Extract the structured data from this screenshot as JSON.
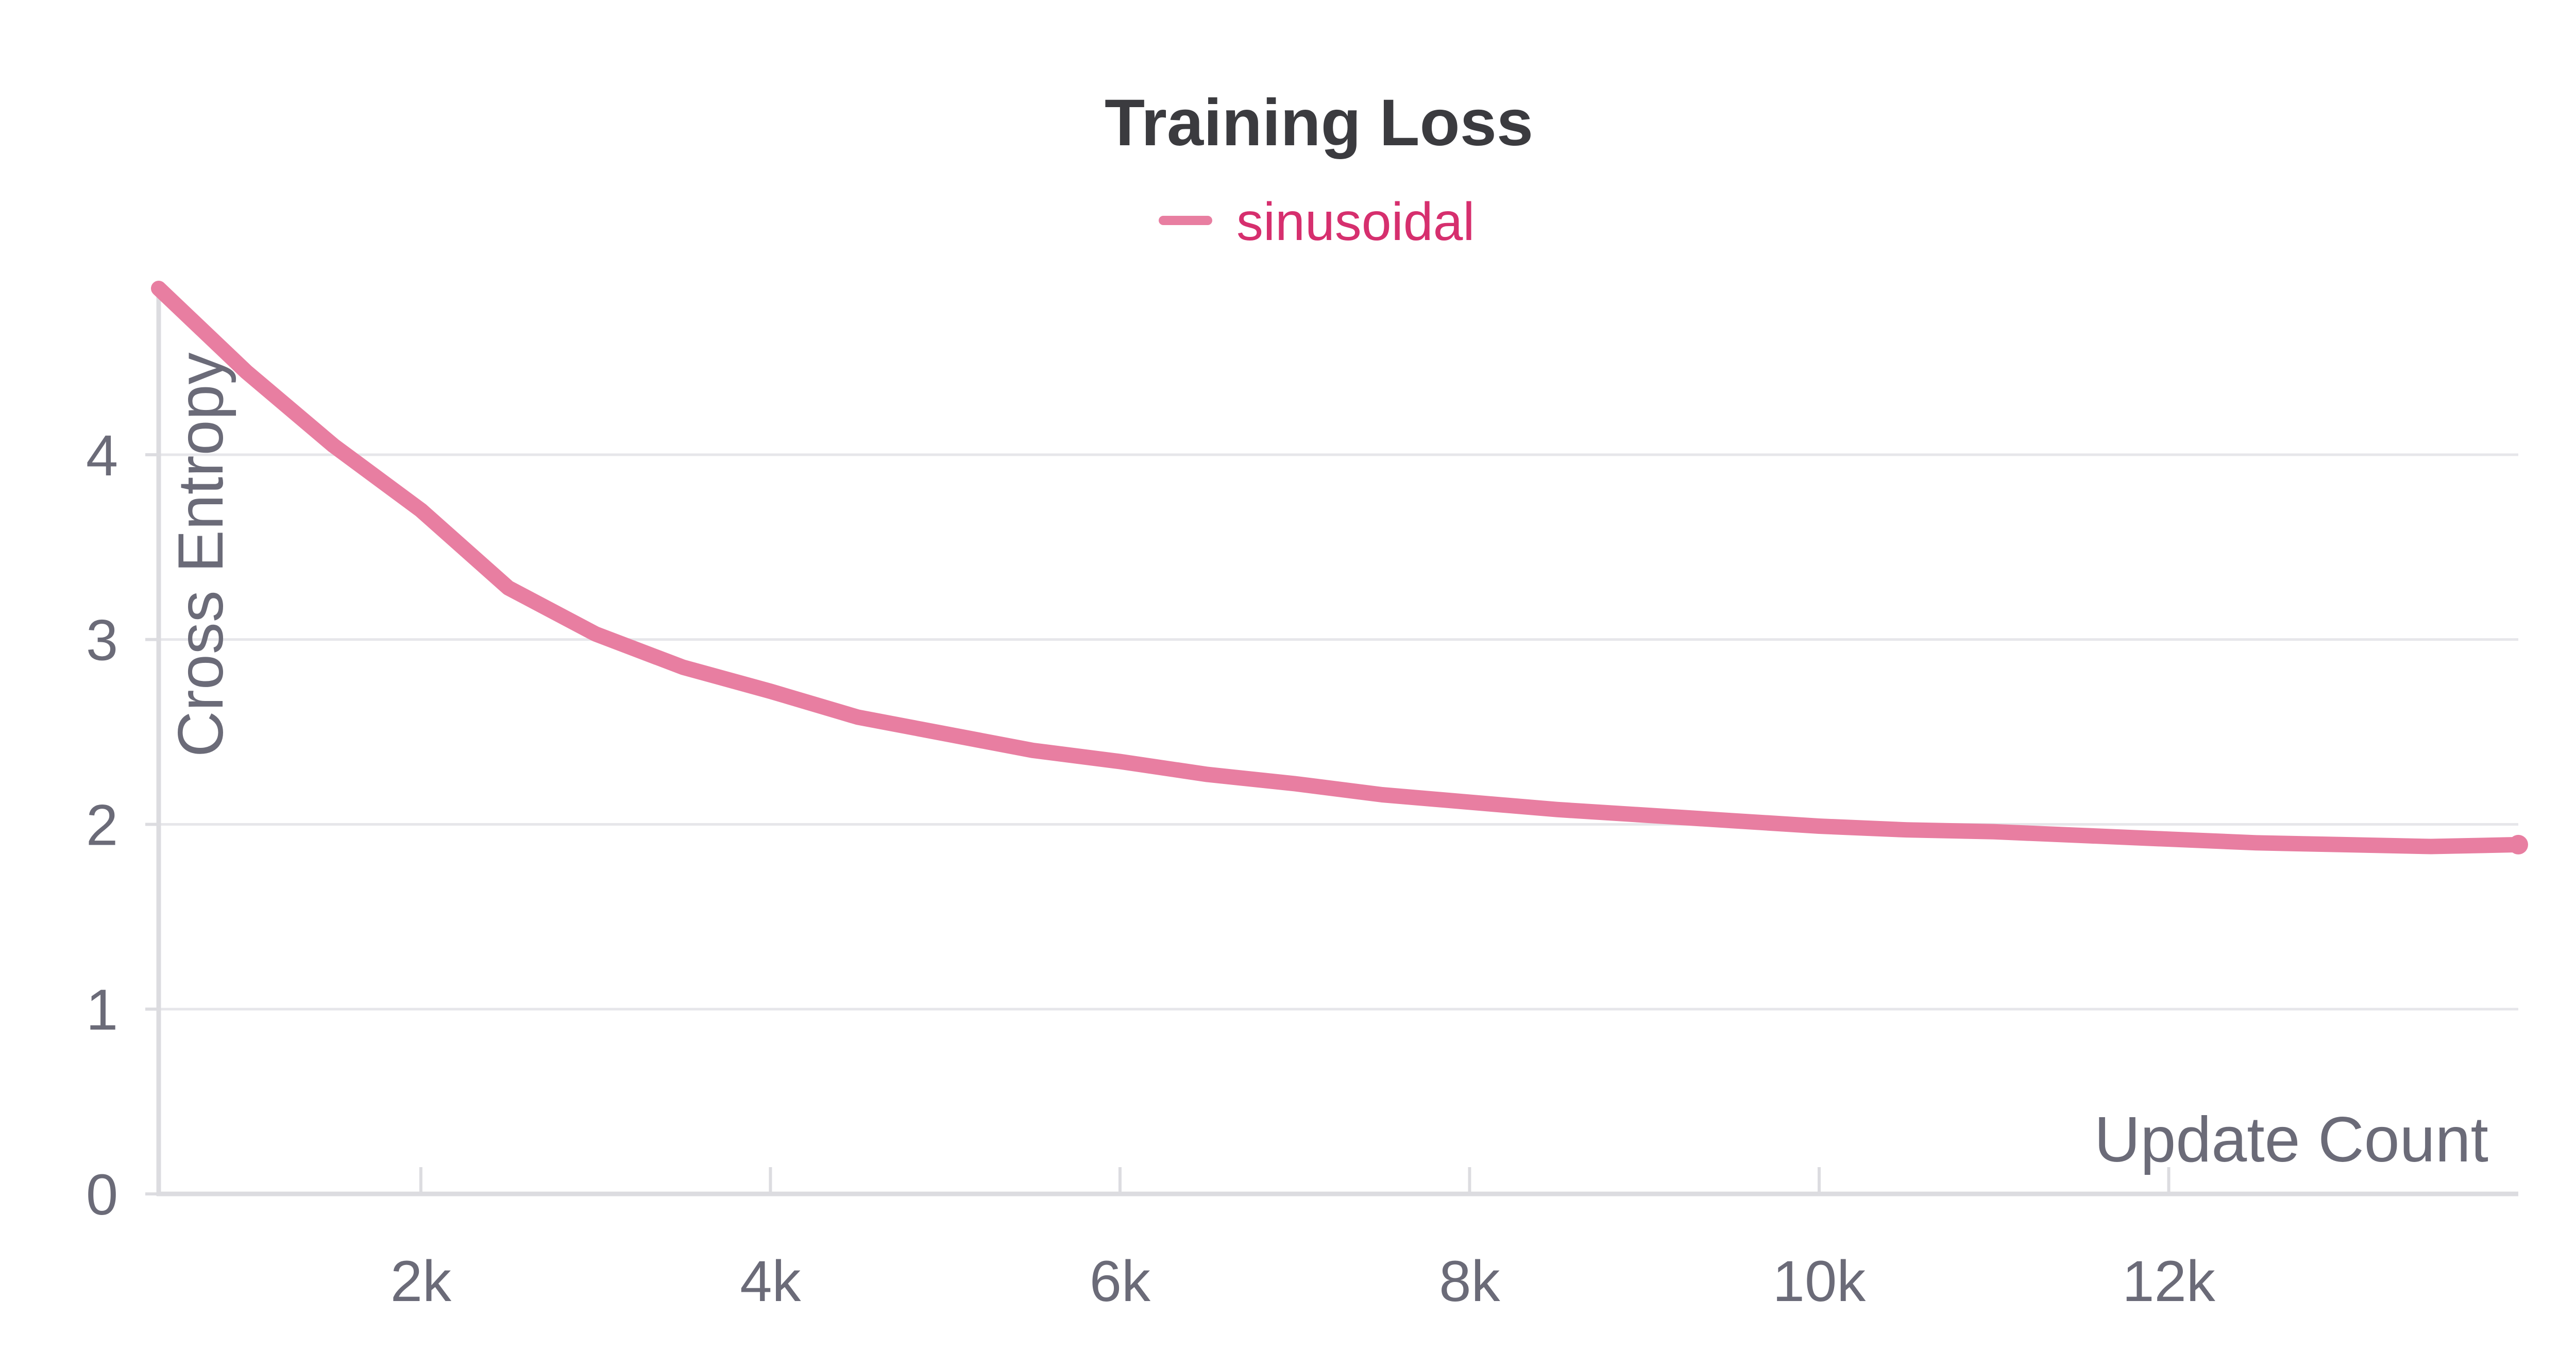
{
  "chart_data": {
    "type": "line",
    "title": "Training Loss",
    "xlabel": "Update Count",
    "ylabel": "Cross Entropy",
    "xlim": [
      500,
      14000
    ],
    "ylim": [
      0,
      4.9
    ],
    "x_ticks": [
      2000,
      4000,
      6000,
      8000,
      10000,
      12000
    ],
    "x_tick_labels": [
      "2k",
      "4k",
      "6k",
      "8k",
      "10k",
      "12k"
    ],
    "y_ticks": [
      0,
      1,
      2,
      3,
      4
    ],
    "y_tick_labels": [
      "0",
      "1",
      "2",
      "3",
      "4"
    ],
    "grid": true,
    "legend_position": "top-center",
    "series": [
      {
        "name": "sinusoidal",
        "color": "#e87ea1",
        "legend_text_color": "#d62f6e",
        "x": [
          500,
          1000,
          1500,
          2000,
          2500,
          3000,
          3500,
          4000,
          4500,
          5000,
          5500,
          6000,
          6500,
          7000,
          7500,
          8000,
          8500,
          9000,
          9500,
          10000,
          10500,
          11000,
          11500,
          12000,
          12500,
          13000,
          13500,
          14000
        ],
        "y": [
          4.9,
          4.45,
          4.05,
          3.7,
          3.28,
          3.03,
          2.85,
          2.72,
          2.58,
          2.49,
          2.4,
          2.34,
          2.27,
          2.22,
          2.16,
          2.12,
          2.08,
          2.05,
          2.02,
          1.99,
          1.97,
          1.96,
          1.94,
          1.92,
          1.9,
          1.89,
          1.88,
          1.89
        ]
      }
    ]
  }
}
